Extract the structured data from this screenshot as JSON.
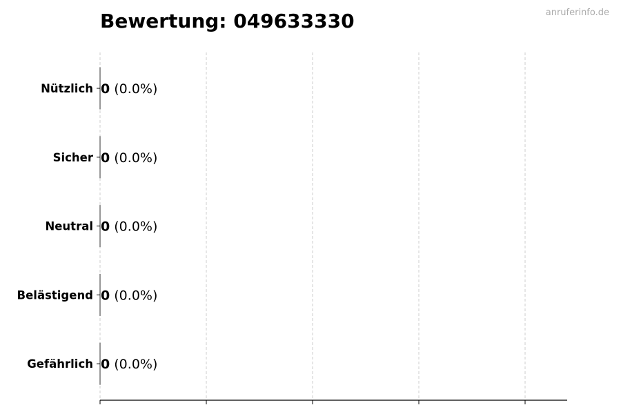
{
  "chart_data": {
    "type": "bar",
    "orientation": "horizontal",
    "title": "Bewertung: 049633330",
    "watermark": "anruferinfo.de",
    "categories": [
      "Nützlich",
      "Sicher",
      "Neutral",
      "Belästigend",
      "Gefährlich"
    ],
    "values": [
      0,
      0,
      0,
      0,
      0
    ],
    "percent_labels": [
      "(0.0%)",
      "(0.0%)",
      "(0.0%)",
      "(0.0%)",
      "(0.0%)"
    ],
    "xlabel": "",
    "ylabel": "",
    "x_tick_count": 5,
    "x_tick_labels_shown": false,
    "grid": "x-axis dashed",
    "colors": {
      "bar_edge": "#333333",
      "grid": "#cccccc",
      "axis": "#000000",
      "watermark": "#aaaaaa"
    }
  }
}
